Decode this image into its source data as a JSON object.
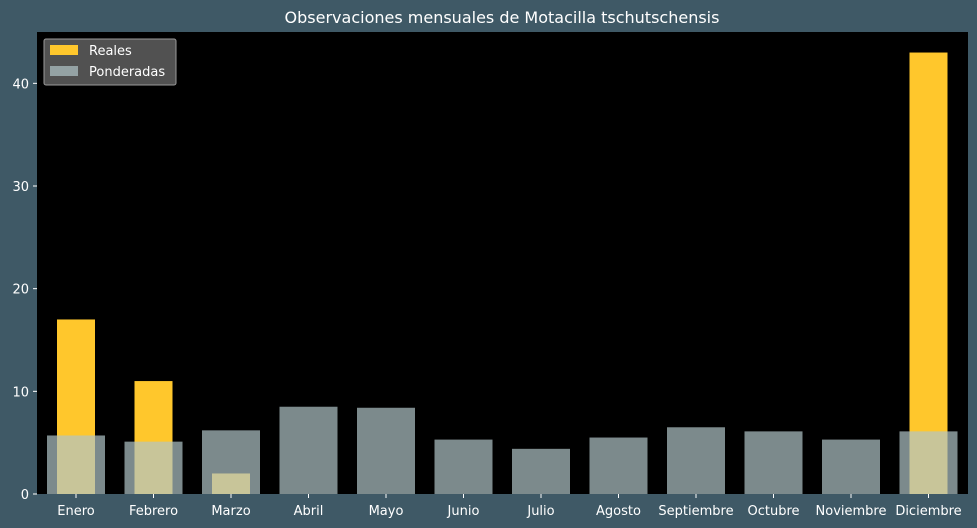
{
  "chart_data": {
    "type": "bar",
    "title": "Observaciones mensuales de Motacilla tschutschensis",
    "xlabel": "",
    "ylabel": "",
    "categories": [
      "Enero",
      "Febrero",
      "Marzo",
      "Abril",
      "Mayo",
      "Junio",
      "Julio",
      "Agosto",
      "Septiembre",
      "Octubre",
      "Noviembre",
      "Diciembre"
    ],
    "series": [
      {
        "name": "Reales",
        "color": "#ffc72c",
        "values": [
          17,
          11,
          2,
          0,
          0,
          0,
          0,
          0,
          0,
          0,
          0,
          43
        ]
      },
      {
        "name": "Ponderadas",
        "color": "#b0c4c8",
        "values": [
          5.7,
          5.1,
          6.2,
          8.5,
          8.4,
          5.3,
          4.4,
          5.5,
          6.5,
          6.1,
          5.3,
          6.1
        ]
      }
    ],
    "ylim": [
      0,
      45
    ],
    "yticks": [
      0,
      10,
      20,
      30,
      40
    ],
    "grid": false,
    "legend_position": "top-left",
    "background_color": "#3f5966",
    "plot_background": "#000000"
  }
}
